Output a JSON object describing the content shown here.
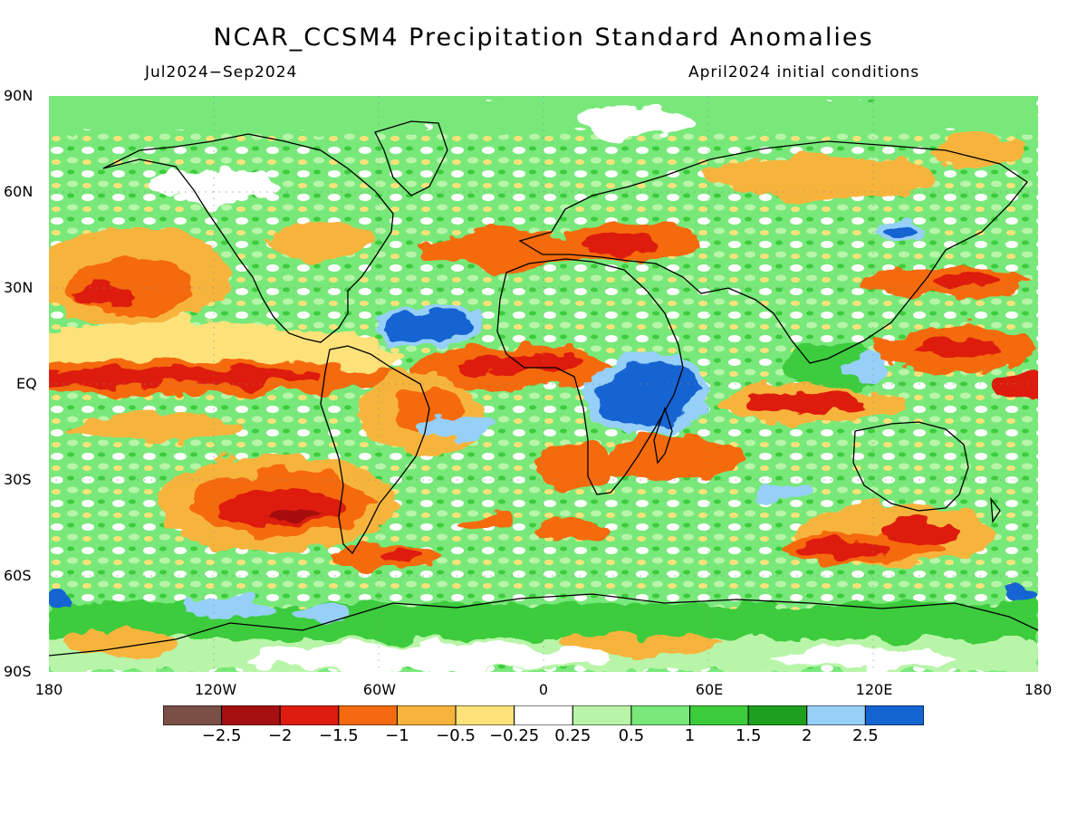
{
  "header": {
    "title": "NCAR_CCSM4 Precipitation Standard Anomalies",
    "period": "Jul2024−Sep2024",
    "init": "April2024 initial conditions"
  },
  "axes": {
    "lat_labels": [
      "90N",
      "60N",
      "30N",
      "EQ",
      "30S",
      "60S",
      "90S"
    ],
    "lon_labels": [
      "180",
      "120W",
      "60W",
      "0",
      "60E",
      "120E",
      "180"
    ]
  },
  "colorbar": {
    "colors": [
      "#7a5046",
      "#a50f0f",
      "#dd1c10",
      "#f56a10",
      "#f7b43c",
      "#fde27a",
      "#ffffff",
      "#b8f5a8",
      "#78e87a",
      "#3ccc3c",
      "#1ea01e",
      "#96d0f8",
      "#1464d2"
    ],
    "labels": [
      "−2.5",
      "−2",
      "−1.5",
      "−1",
      "−0.5",
      "−0.25",
      "0.25",
      "0.5",
      "1",
      "1.5",
      "2",
      "2.5"
    ]
  }
}
